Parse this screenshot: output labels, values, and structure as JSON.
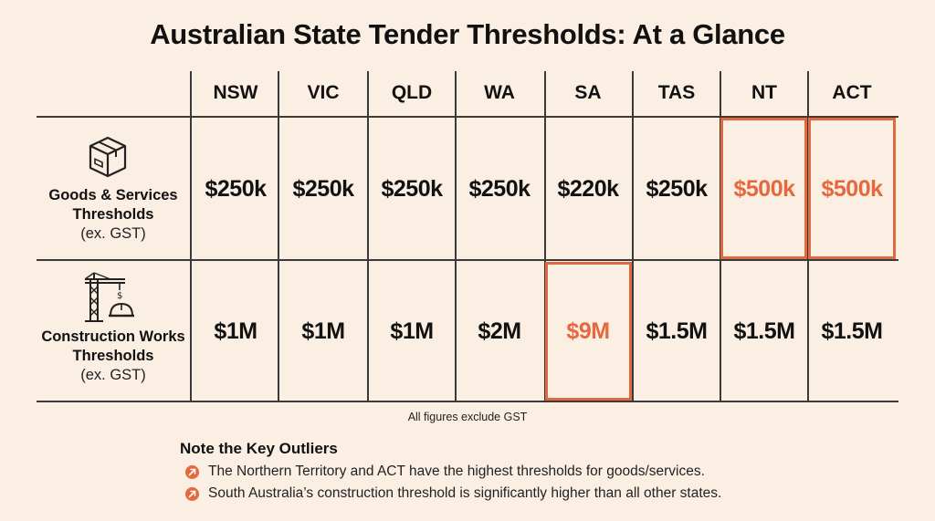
{
  "title": "Australian State Tender Thresholds: At a Glance",
  "chart_data": {
    "type": "table",
    "columns": [
      "NSW",
      "VIC",
      "QLD",
      "WA",
      "SA",
      "TAS",
      "NT",
      "ACT"
    ],
    "rows": [
      {
        "label_bold": "Goods & Services Thresholds",
        "label_sub": "(ex. GST)",
        "icon": "box-icon",
        "values": [
          "$250k",
          "$250k",
          "$250k",
          "$250k",
          "$220k",
          "$250k",
          "$500k",
          "$500k"
        ],
        "highlighted": [
          "NT",
          "ACT"
        ]
      },
      {
        "label_bold": "Construction Works Thresholds",
        "label_sub": "(ex. GST)",
        "icon": "crane-hardhat-icon",
        "values": [
          "$1M",
          "$1M",
          "$1M",
          "$2M",
          "$9M",
          "$1.5M",
          "$1.5M",
          "$1.5M"
        ],
        "highlighted": [
          "SA"
        ]
      }
    ]
  },
  "footnote": "All figures exclude GST",
  "notes": {
    "title": "Note the Key Outliers",
    "items": [
      "The Northern Territory and ACT have the highest thresholds for goods/services.",
      "South Australia’s construction threshold is significantly higher than all other states."
    ]
  },
  "colors": {
    "highlight": "#e4693d",
    "background": "#fbeee2",
    "text": "#111111"
  }
}
